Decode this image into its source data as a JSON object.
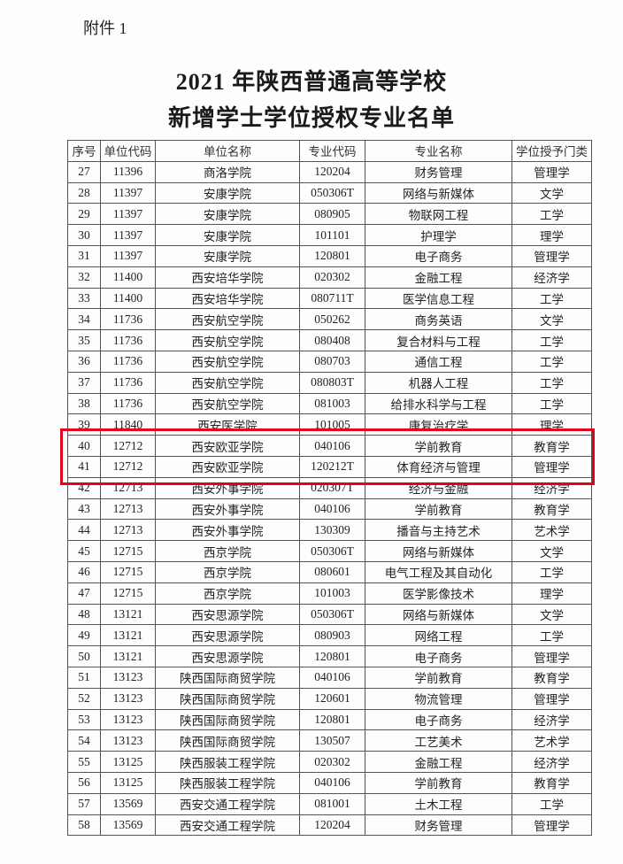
{
  "attachment_label": "附件 1",
  "title_line1": "2021 年陕西普通高等学校",
  "title_line2": "新增学士学位授权专业名单",
  "highlight_color": "#e3001b",
  "table": {
    "headers": [
      "序号",
      "单位代码",
      "单位名称",
      "专业代码",
      "专业名称",
      "学位授予门类"
    ],
    "rows": [
      [
        "27",
        "11396",
        "商洛学院",
        "120204",
        "财务管理",
        "管理学"
      ],
      [
        "28",
        "11397",
        "安康学院",
        "050306T",
        "网络与新媒体",
        "文学"
      ],
      [
        "29",
        "11397",
        "安康学院",
        "080905",
        "物联网工程",
        "工学"
      ],
      [
        "30",
        "11397",
        "安康学院",
        "101101",
        "护理学",
        "理学"
      ],
      [
        "31",
        "11397",
        "安康学院",
        "120801",
        "电子商务",
        "管理学"
      ],
      [
        "32",
        "11400",
        "西安培华学院",
        "020302",
        "金融工程",
        "经济学"
      ],
      [
        "33",
        "11400",
        "西安培华学院",
        "080711T",
        "医学信息工程",
        "工学"
      ],
      [
        "34",
        "11736",
        "西安航空学院",
        "050262",
        "商务英语",
        "文学"
      ],
      [
        "35",
        "11736",
        "西安航空学院",
        "080408",
        "复合材料与工程",
        "工学"
      ],
      [
        "36",
        "11736",
        "西安航空学院",
        "080703",
        "通信工程",
        "工学"
      ],
      [
        "37",
        "11736",
        "西安航空学院",
        "080803T",
        "机器人工程",
        "工学"
      ],
      [
        "38",
        "11736",
        "西安航空学院",
        "081003",
        "给排水科学与工程",
        "工学"
      ],
      [
        "39",
        "11840",
        "西安医学院",
        "101005",
        "康复治疗学",
        "理学"
      ],
      [
        "40",
        "12712",
        "西安欧亚学院",
        "040106",
        "学前教育",
        "教育学"
      ],
      [
        "41",
        "12712",
        "西安欧亚学院",
        "120212T",
        "体育经济与管理",
        "管理学"
      ],
      [
        "42",
        "12713",
        "西安外事学院",
        "020307T",
        "经济与金融",
        "经济学"
      ],
      [
        "43",
        "12713",
        "西安外事学院",
        "040106",
        "学前教育",
        "教育学"
      ],
      [
        "44",
        "12713",
        "西安外事学院",
        "130309",
        "播音与主持艺术",
        "艺术学"
      ],
      [
        "45",
        "12715",
        "西京学院",
        "050306T",
        "网络与新媒体",
        "文学"
      ],
      [
        "46",
        "12715",
        "西京学院",
        "080601",
        "电气工程及其自动化",
        "工学"
      ],
      [
        "47",
        "12715",
        "西京学院",
        "101003",
        "医学影像技术",
        "理学"
      ],
      [
        "48",
        "13121",
        "西安思源学院",
        "050306T",
        "网络与新媒体",
        "文学"
      ],
      [
        "49",
        "13121",
        "西安思源学院",
        "080903",
        "网络工程",
        "工学"
      ],
      [
        "50",
        "13121",
        "西安思源学院",
        "120801",
        "电子商务",
        "管理学"
      ],
      [
        "51",
        "13123",
        "陕西国际商贸学院",
        "040106",
        "学前教育",
        "教育学"
      ],
      [
        "52",
        "13123",
        "陕西国际商贸学院",
        "120601",
        "物流管理",
        "管理学"
      ],
      [
        "53",
        "13123",
        "陕西国际商贸学院",
        "120801",
        "电子商务",
        "经济学"
      ],
      [
        "54",
        "13123",
        "陕西国际商贸学院",
        "130507",
        "工艺美术",
        "艺术学"
      ],
      [
        "55",
        "13125",
        "陕西服装工程学院",
        "020302",
        "金融工程",
        "经济学"
      ],
      [
        "56",
        "13125",
        "陕西服装工程学院",
        "040106",
        "学前教育",
        "教育学"
      ],
      [
        "57",
        "13569",
        "西安交通工程学院",
        "081001",
        "土木工程",
        "工学"
      ],
      [
        "58",
        "13569",
        "西安交通工程学院",
        "120204",
        "财务管理",
        "管理学"
      ]
    ]
  }
}
